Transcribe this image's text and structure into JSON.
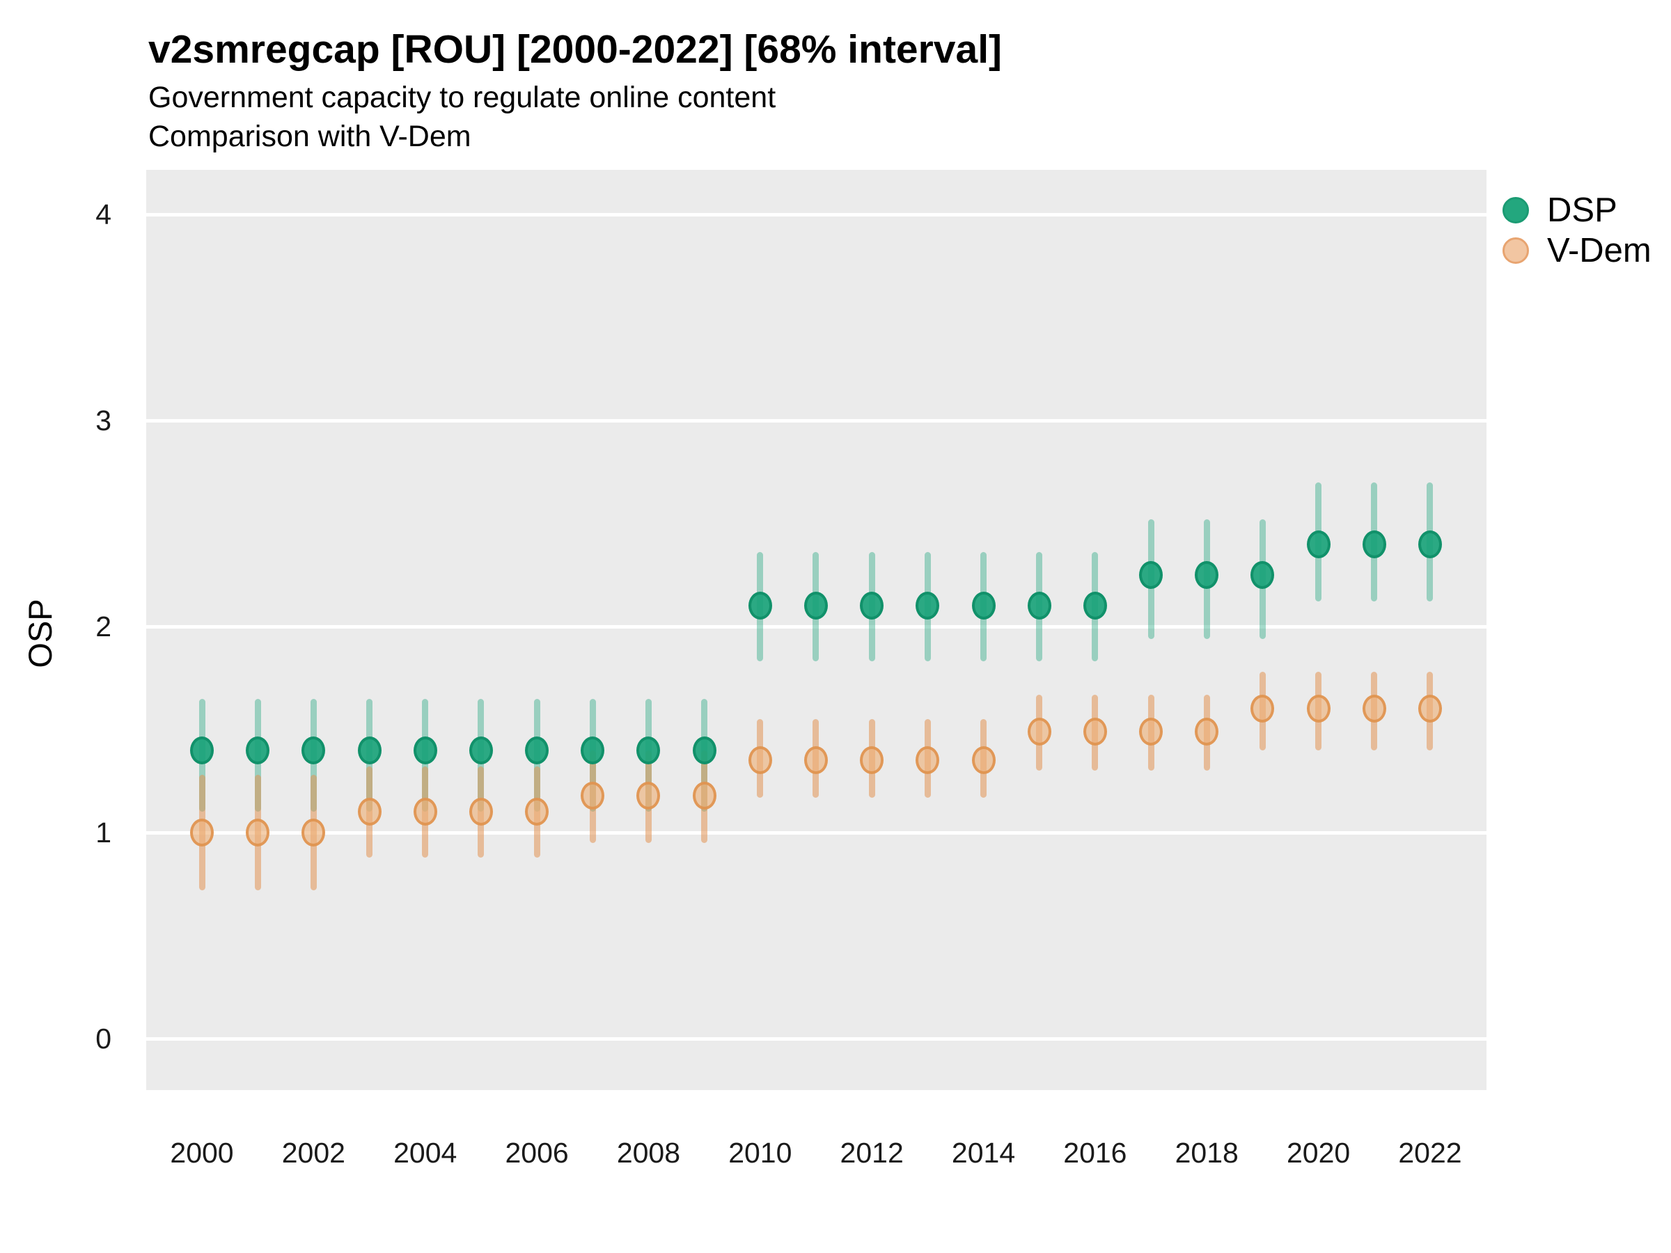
{
  "header": {
    "title": "v2smregcap [ROU] [2000-2022] [68% interval]",
    "subtitle1": "Government capacity to regulate online content",
    "subtitle2": "Comparison with V-Dem"
  },
  "legend": {
    "dsp_label": "DSP",
    "vdem_label": "V-Dem"
  },
  "colors": {
    "dsp": "#1DA57C",
    "vdem": "#E0914F",
    "panel_background": "#EBEBEB",
    "gridline": "#FFFFFF"
  },
  "chart_data": {
    "type": "scatter",
    "title": "v2smregcap [ROU] [2000-2022] [68% interval]",
    "subtitle": "Government capacity to regulate online content — Comparison with V-Dem",
    "xlabel": "",
    "ylabel": "OSP",
    "interval": "68%",
    "grid": "on",
    "legend_position": "right",
    "ylim": [
      -0.25,
      4.25
    ],
    "y_ticks": [
      0,
      1,
      2,
      3,
      4
    ],
    "y_tick_labels": [
      "0",
      "1",
      "2",
      "3",
      "4"
    ],
    "x": [
      2000,
      2001,
      2002,
      2003,
      2004,
      2005,
      2006,
      2007,
      2008,
      2009,
      2010,
      2011,
      2012,
      2013,
      2014,
      2015,
      2016,
      2017,
      2018,
      2019,
      2020,
      2021,
      2022
    ],
    "x_tick_years": [
      2000,
      2002,
      2004,
      2006,
      2008,
      2010,
      2012,
      2014,
      2016,
      2018,
      2020,
      2022
    ],
    "x_tick_labels": [
      "2000",
      "2002",
      "2004",
      "2006",
      "2008",
      "2010",
      "2012",
      "2014",
      "2016",
      "2018",
      "2020",
      "2022"
    ],
    "series": [
      {
        "name": "DSP",
        "color": "#1DA57C",
        "values": [
          1.4,
          1.4,
          1.4,
          1.4,
          1.4,
          1.4,
          1.4,
          1.4,
          1.4,
          1.4,
          2.1,
          2.1,
          2.1,
          2.1,
          2.1,
          2.1,
          2.1,
          2.25,
          2.25,
          2.25,
          2.4,
          2.4,
          2.4
        ],
        "lower": [
          1.1,
          1.1,
          1.1,
          1.1,
          1.1,
          1.1,
          1.1,
          1.1,
          1.1,
          1.1,
          1.83,
          1.83,
          1.83,
          1.83,
          1.83,
          1.83,
          1.83,
          1.94,
          1.94,
          1.94,
          2.12,
          2.12,
          2.12
        ],
        "upper": [
          1.65,
          1.65,
          1.65,
          1.65,
          1.65,
          1.65,
          1.65,
          1.65,
          1.65,
          1.65,
          2.36,
          2.36,
          2.36,
          2.36,
          2.36,
          2.36,
          2.36,
          2.52,
          2.52,
          2.52,
          2.7,
          2.7,
          2.7
        ]
      },
      {
        "name": "V-Dem",
        "color": "#E0914F",
        "values": [
          1.0,
          1.0,
          1.0,
          1.1,
          1.1,
          1.1,
          1.1,
          1.18,
          1.18,
          1.18,
          1.35,
          1.35,
          1.35,
          1.35,
          1.35,
          1.49,
          1.49,
          1.49,
          1.49,
          1.6,
          1.6,
          1.6,
          1.6
        ],
        "lower": [
          0.72,
          0.72,
          0.72,
          0.88,
          0.88,
          0.88,
          0.88,
          0.95,
          0.95,
          0.95,
          1.17,
          1.17,
          1.17,
          1.17,
          1.17,
          1.3,
          1.3,
          1.3,
          1.3,
          1.4,
          1.4,
          1.4,
          1.4
        ],
        "upper": [
          1.28,
          1.28,
          1.28,
          1.32,
          1.32,
          1.32,
          1.32,
          1.4,
          1.4,
          1.4,
          1.55,
          1.55,
          1.55,
          1.55,
          1.55,
          1.67,
          1.67,
          1.67,
          1.67,
          1.78,
          1.78,
          1.78,
          1.78
        ]
      }
    ]
  }
}
